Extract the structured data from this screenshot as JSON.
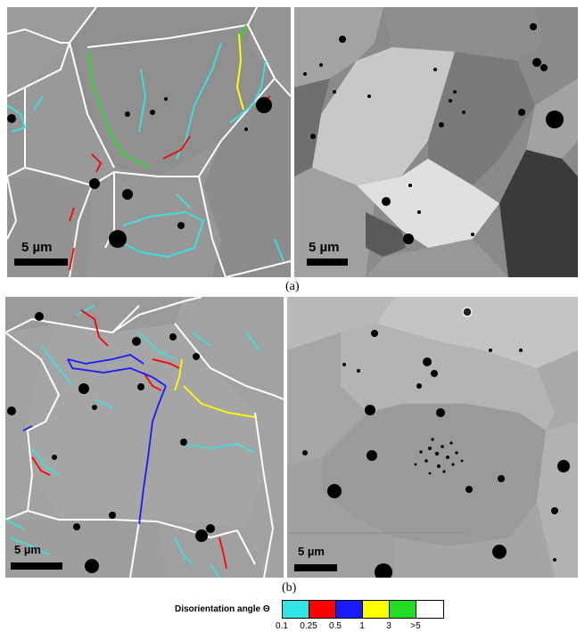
{
  "panels": {
    "a_left": {
      "scale_label": "5 µm"
    },
    "a_right": {
      "scale_label": "5 µm"
    },
    "b_left": {
      "scale_label": "5 µm"
    },
    "b_right": {
      "scale_label": "5 µm"
    }
  },
  "captions": {
    "a": "(a)",
    "b": "(b)"
  },
  "legend": {
    "title": "Disorientation angle Θ",
    "swatches": [
      {
        "color": "#33e6e6",
        "range": "0.1–0.25"
      },
      {
        "color": "#ff0000",
        "range": "0.25–0.5"
      },
      {
        "color": "#1a1aff",
        "range": "0.5–1"
      },
      {
        "color": "#ffff00",
        "range": "1–3"
      },
      {
        "color": "#22dd22",
        "range": "3–5"
      },
      {
        "color": "#ffffff",
        "range": ">5"
      }
    ],
    "ticks": [
      "0.1",
      "0.25",
      "0.5",
      "1",
      "3",
      ">5"
    ]
  }
}
